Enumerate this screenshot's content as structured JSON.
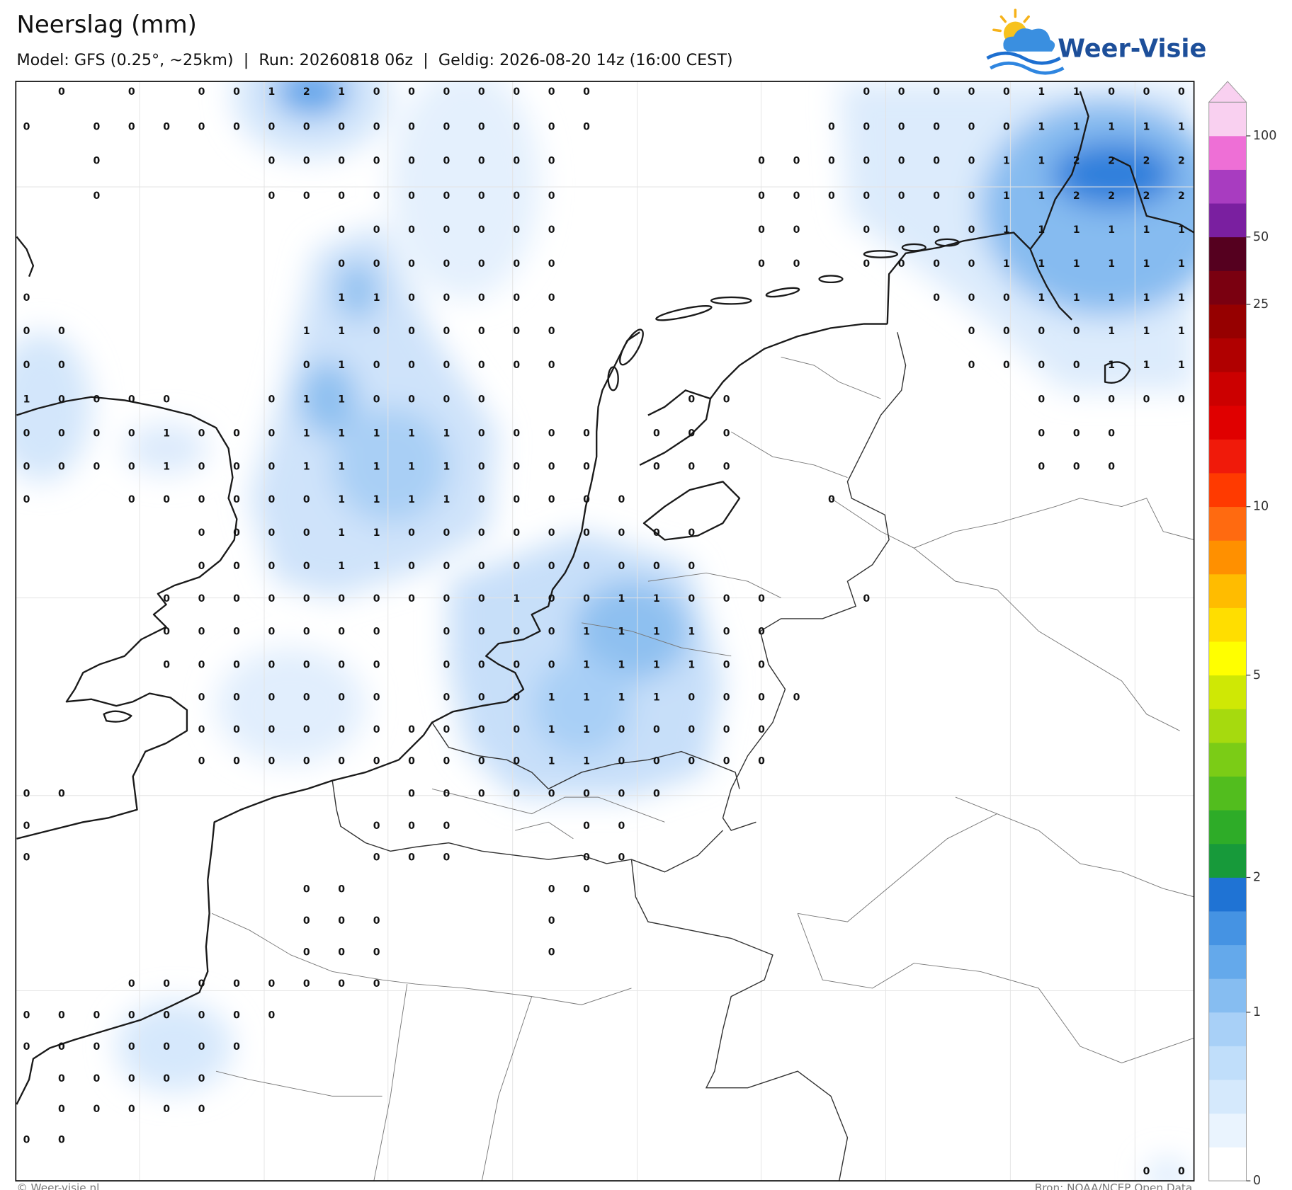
{
  "header": {
    "title": "Neerslag (mm)",
    "subtitle": "Model: GFS (0.25°, ~25km)  |  Run: 20260818 06z  |  Geldig: 2026-08-20 14z (16:00 CEST)"
  },
  "logo": {
    "text": "Weer-Visie"
  },
  "map": {
    "grid": {
      "rows": [
        [
          null,
          0,
          null,
          0,
          null,
          0,
          0,
          1,
          2,
          1,
          0,
          0,
          0,
          0,
          0,
          0,
          0,
          null,
          null,
          null,
          null,
          null,
          null,
          null,
          0,
          0,
          0,
          0,
          0,
          1,
          1,
          0,
          0,
          0
        ],
        [
          0,
          null,
          0,
          0,
          0,
          0,
          0,
          0,
          0,
          0,
          0,
          0,
          0,
          0,
          0,
          0,
          0,
          null,
          null,
          null,
          null,
          null,
          null,
          0,
          0,
          0,
          0,
          0,
          0,
          1,
          1,
          1,
          1,
          1
        ],
        [
          null,
          null,
          0,
          null,
          null,
          null,
          null,
          0,
          0,
          0,
          0,
          0,
          0,
          0,
          0,
          0,
          null,
          null,
          null,
          null,
          null,
          0,
          0,
          0,
          0,
          0,
          0,
          0,
          1,
          1,
          2,
          2,
          2,
          2
        ],
        [
          null,
          null,
          0,
          null,
          null,
          null,
          null,
          0,
          0,
          0,
          0,
          0,
          0,
          0,
          0,
          0,
          null,
          null,
          null,
          null,
          null,
          0,
          0,
          0,
          0,
          0,
          0,
          0,
          1,
          1,
          2,
          2,
          2,
          2
        ],
        [
          null,
          null,
          null,
          null,
          null,
          null,
          null,
          null,
          null,
          0,
          0,
          0,
          0,
          0,
          0,
          0,
          null,
          null,
          null,
          null,
          null,
          0,
          0,
          null,
          0,
          0,
          0,
          0,
          1,
          1,
          1,
          1,
          1,
          1
        ],
        [
          null,
          null,
          null,
          null,
          null,
          null,
          null,
          null,
          null,
          0,
          0,
          0,
          0,
          0,
          0,
          0,
          null,
          null,
          null,
          null,
          null,
          0,
          0,
          null,
          0,
          0,
          0,
          0,
          1,
          1,
          1,
          1,
          1,
          1
        ],
        [
          0,
          null,
          null,
          null,
          null,
          null,
          null,
          null,
          null,
          1,
          1,
          0,
          0,
          0,
          0,
          0,
          null,
          null,
          null,
          null,
          null,
          null,
          null,
          null,
          null,
          null,
          0,
          0,
          0,
          1,
          1,
          1,
          1,
          1
        ],
        [
          0,
          0,
          null,
          null,
          null,
          null,
          null,
          null,
          1,
          1,
          0,
          0,
          0,
          0,
          0,
          0,
          null,
          null,
          null,
          null,
          null,
          null,
          null,
          null,
          null,
          null,
          null,
          0,
          0,
          0,
          0,
          1,
          1,
          1
        ],
        [
          0,
          0,
          null,
          null,
          null,
          null,
          null,
          null,
          0,
          1,
          0,
          0,
          0,
          0,
          0,
          0,
          null,
          null,
          null,
          null,
          null,
          null,
          null,
          null,
          null,
          null,
          null,
          0,
          0,
          0,
          0,
          1,
          1,
          1
        ],
        [
          1,
          0,
          0,
          0,
          0,
          null,
          null,
          0,
          1,
          1,
          0,
          0,
          0,
          0,
          null,
          null,
          null,
          null,
          null,
          0,
          0,
          null,
          null,
          null,
          null,
          null,
          null,
          null,
          null,
          0,
          0,
          0,
          0,
          0
        ],
        [
          0,
          0,
          0,
          0,
          1,
          0,
          0,
          0,
          1,
          1,
          1,
          1,
          1,
          0,
          0,
          0,
          0,
          null,
          0,
          0,
          0,
          null,
          null,
          null,
          null,
          null,
          null,
          null,
          null,
          0,
          0,
          0,
          null,
          null
        ],
        [
          0,
          0,
          0,
          0,
          1,
          0,
          0,
          0,
          1,
          1,
          1,
          1,
          1,
          0,
          0,
          0,
          0,
          null,
          0,
          0,
          0,
          null,
          null,
          null,
          null,
          null,
          null,
          null,
          null,
          0,
          0,
          0,
          null,
          null
        ],
        [
          0,
          null,
          null,
          0,
          0,
          0,
          0,
          0,
          0,
          1,
          1,
          1,
          1,
          0,
          0,
          0,
          0,
          0,
          null,
          null,
          null,
          null,
          null,
          0,
          null,
          null,
          null,
          null,
          null,
          null,
          null,
          null,
          null,
          null
        ],
        [
          null,
          null,
          null,
          null,
          null,
          0,
          0,
          0,
          0,
          1,
          1,
          0,
          0,
          0,
          0,
          0,
          0,
          0,
          0,
          0,
          null,
          null,
          null,
          null,
          null,
          null,
          null,
          null,
          null,
          null,
          null,
          null,
          null,
          null
        ],
        [
          null,
          null,
          null,
          null,
          null,
          0,
          0,
          0,
          0,
          1,
          1,
          0,
          0,
          0,
          0,
          0,
          0,
          0,
          0,
          0,
          null,
          null,
          null,
          null,
          null,
          null,
          null,
          null,
          null,
          null,
          null,
          null,
          null,
          null
        ],
        [
          null,
          null,
          null,
          null,
          0,
          0,
          0,
          0,
          0,
          0,
          0,
          0,
          0,
          0,
          1,
          0,
          0,
          1,
          1,
          0,
          0,
          0,
          null,
          null,
          0,
          null,
          null,
          null,
          null,
          null,
          null,
          null,
          null,
          null
        ],
        [
          null,
          null,
          null,
          null,
          0,
          0,
          0,
          0,
          0,
          0,
          0,
          null,
          0,
          0,
          0,
          0,
          1,
          1,
          1,
          1,
          0,
          0,
          null,
          null,
          null,
          null,
          null,
          null,
          null,
          null,
          null,
          null,
          null,
          null
        ],
        [
          null,
          null,
          null,
          null,
          0,
          0,
          0,
          0,
          0,
          0,
          0,
          null,
          0,
          0,
          0,
          0,
          1,
          1,
          1,
          1,
          0,
          0,
          null,
          null,
          null,
          null,
          null,
          null,
          null,
          null,
          null,
          null,
          null,
          null
        ],
        [
          null,
          null,
          null,
          null,
          null,
          0,
          0,
          0,
          0,
          0,
          0,
          null,
          0,
          0,
          0,
          1,
          1,
          1,
          1,
          0,
          0,
          0,
          0,
          null,
          null,
          null,
          null,
          null,
          null,
          null,
          null,
          null,
          null,
          null
        ],
        [
          null,
          null,
          null,
          null,
          null,
          0,
          0,
          0,
          0,
          0,
          0,
          0,
          0,
          0,
          0,
          1,
          1,
          0,
          0,
          0,
          0,
          0,
          null,
          null,
          null,
          null,
          null,
          null,
          null,
          null,
          null,
          null,
          null,
          null
        ],
        [
          null,
          null,
          null,
          null,
          null,
          0,
          0,
          0,
          0,
          0,
          0,
          0,
          0,
          0,
          0,
          1,
          1,
          0,
          0,
          0,
          0,
          0,
          null,
          null,
          null,
          null,
          null,
          null,
          null,
          null,
          null,
          null,
          null,
          null
        ],
        [
          0,
          0,
          null,
          null,
          null,
          null,
          null,
          null,
          null,
          null,
          null,
          0,
          0,
          0,
          0,
          0,
          0,
          0,
          0,
          null,
          null,
          null,
          null,
          null,
          null,
          null,
          null,
          null,
          null,
          null,
          null,
          null,
          null,
          null
        ],
        [
          0,
          null,
          null,
          null,
          null,
          null,
          null,
          null,
          null,
          null,
          0,
          0,
          0,
          null,
          null,
          null,
          0,
          0,
          null,
          null,
          null,
          null,
          null,
          null,
          null,
          null,
          null,
          null,
          null,
          null,
          null,
          null,
          null,
          null
        ],
        [
          0,
          null,
          null,
          null,
          null,
          null,
          null,
          null,
          null,
          null,
          0,
          0,
          0,
          null,
          null,
          null,
          0,
          0,
          null,
          null,
          null,
          null,
          null,
          null,
          null,
          null,
          null,
          null,
          null,
          null,
          null,
          null,
          null,
          null
        ],
        [
          null,
          null,
          null,
          null,
          null,
          null,
          null,
          null,
          0,
          0,
          null,
          null,
          null,
          null,
          null,
          0,
          0,
          null,
          null,
          null,
          null,
          null,
          null,
          null,
          null,
          null,
          null,
          null,
          null,
          null,
          null,
          null,
          null,
          null
        ],
        [
          null,
          null,
          null,
          null,
          null,
          null,
          null,
          null,
          0,
          0,
          0,
          null,
          null,
          null,
          null,
          0,
          null,
          null,
          null,
          null,
          null,
          null,
          null,
          null,
          null,
          null,
          null,
          null,
          null,
          null,
          null,
          null,
          null,
          null
        ],
        [
          null,
          null,
          null,
          null,
          null,
          null,
          null,
          null,
          0,
          0,
          0,
          null,
          null,
          null,
          null,
          0,
          null,
          null,
          null,
          null,
          null,
          null,
          null,
          null,
          null,
          null,
          null,
          null,
          null,
          null,
          null,
          null,
          null,
          null
        ],
        [
          null,
          null,
          null,
          0,
          0,
          0,
          0,
          0,
          0,
          0,
          0,
          null,
          null,
          null,
          null,
          null,
          null,
          null,
          null,
          null,
          null,
          null,
          null,
          null,
          null,
          null,
          null,
          null,
          null,
          null,
          null,
          null,
          null,
          null
        ],
        [
          0,
          0,
          0,
          0,
          0,
          0,
          0,
          0,
          null,
          null,
          null,
          null,
          null,
          null,
          null,
          null,
          null,
          null,
          null,
          null,
          null,
          null,
          null,
          null,
          null,
          null,
          null,
          null,
          null,
          null,
          null,
          null,
          null,
          null
        ],
        [
          0,
          0,
          0,
          0,
          0,
          0,
          0,
          null,
          null,
          null,
          null,
          null,
          null,
          null,
          null,
          null,
          null,
          null,
          null,
          null,
          null,
          null,
          null,
          null,
          null,
          null,
          null,
          null,
          null,
          null,
          null,
          null,
          null,
          null
        ],
        [
          null,
          0,
          0,
          0,
          0,
          0,
          null,
          null,
          null,
          null,
          null,
          null,
          null,
          null,
          null,
          null,
          null,
          null,
          null,
          null,
          null,
          null,
          null,
          null,
          null,
          null,
          null,
          null,
          null,
          null,
          null,
          null,
          null,
          null
        ],
        [
          null,
          0,
          0,
          0,
          0,
          0,
          null,
          null,
          null,
          null,
          null,
          null,
          null,
          null,
          null,
          null,
          null,
          null,
          null,
          null,
          null,
          null,
          null,
          null,
          null,
          null,
          null,
          null,
          null,
          null,
          null,
          null,
          null,
          null
        ],
        [
          0,
          0,
          null,
          null,
          null,
          null,
          null,
          null,
          null,
          null,
          null,
          null,
          null,
          null,
          null,
          null,
          null,
          null,
          null,
          null,
          null,
          null,
          null,
          null,
          null,
          null,
          null,
          null,
          null,
          null,
          null,
          null,
          null,
          null
        ],
        [
          null,
          null,
          null,
          null,
          null,
          null,
          null,
          null,
          null,
          null,
          null,
          null,
          null,
          null,
          null,
          null,
          null,
          null,
          null,
          null,
          null,
          null,
          null,
          null,
          null,
          null,
          null,
          null,
          null,
          null,
          null,
          null,
          0,
          0
        ]
      ]
    }
  },
  "colorbar": {
    "levels": [
      0,
      0.1,
      0.2,
      0.4,
      0.7,
      1,
      1.25,
      1.5,
      1.75,
      2,
      2.5,
      3,
      3.5,
      4,
      4.5,
      5,
      6,
      7,
      8,
      9,
      10,
      12.5,
      15,
      17.5,
      20,
      22.5,
      25,
      37.5,
      50,
      62.5,
      75,
      100,
      150
    ],
    "colors": [
      "#ffffff",
      "#eaf4fe",
      "#d5e9fc",
      "#c0defa",
      "#a8d0f7",
      "#86bdf1",
      "#64a9eb",
      "#4593e3",
      "#1f73d4",
      "#179a3a",
      "#2eac28",
      "#52bd1e",
      "#7bcc16",
      "#a6da0e",
      "#cfe805",
      "#ffff00",
      "#ffde00",
      "#ffbc00",
      "#ff9000",
      "#ff6a10",
      "#ff3a00",
      "#f01a0a",
      "#e00000",
      "#cc0000",
      "#b00000",
      "#960000",
      "#7a0010",
      "#55001f",
      "#7a1fa0",
      "#a83cc0",
      "#ee6fd6",
      "#f9d0f0"
    ],
    "ticks": [
      0,
      1,
      2,
      5,
      10,
      25,
      50,
      100
    ]
  },
  "footer": {
    "left": "© Weer-visie.nl",
    "right": "Bron: NOAA/NCEP Open Data"
  }
}
